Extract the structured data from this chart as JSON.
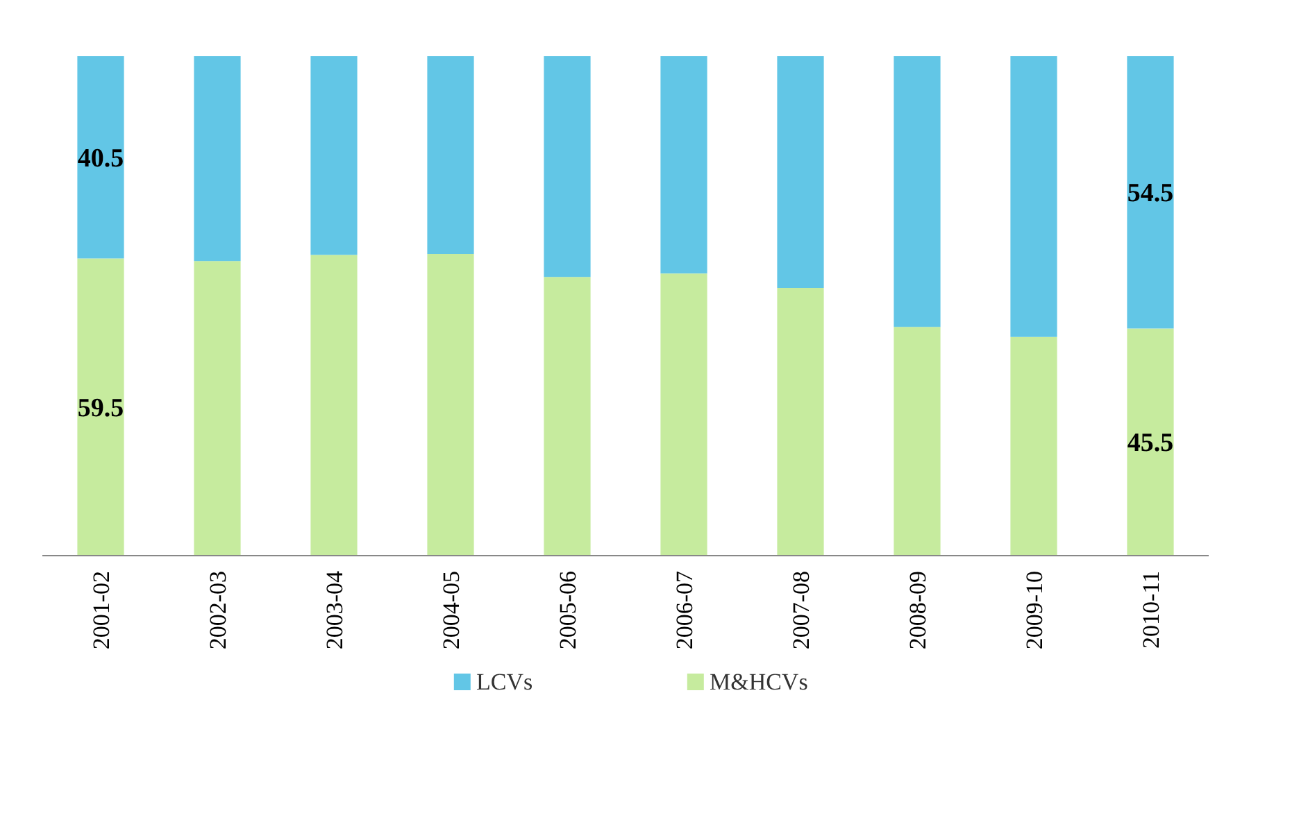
{
  "chart_data": {
    "type": "bar",
    "stacked": true,
    "categories": [
      "2001-02",
      "2002-03",
      "2003-04",
      "2004-05",
      "2005-06",
      "2006-07",
      "2007-08",
      "2008-09",
      "2009-10",
      "2010-11"
    ],
    "series": [
      {
        "name": "M&HCVs",
        "color": "#c6eb9e",
        "values": [
          59.5,
          59.0,
          60.2,
          60.4,
          55.8,
          56.5,
          53.6,
          45.8,
          43.8,
          45.5
        ],
        "value_labels": [
          "59.5",
          null,
          null,
          null,
          null,
          null,
          null,
          null,
          null,
          "45.5"
        ]
      },
      {
        "name": "LCVs",
        "color": "#62c6e6",
        "values": [
          40.5,
          41.0,
          39.8,
          39.6,
          44.2,
          43.5,
          46.4,
          54.2,
          56.2,
          54.5
        ],
        "value_labels": [
          "40.5",
          null,
          null,
          null,
          null,
          null,
          null,
          null,
          null,
          "54.5"
        ]
      }
    ],
    "ylim": [
      0,
      100
    ],
    "tick_labels": "x",
    "grid": false,
    "legend": "bottom"
  }
}
